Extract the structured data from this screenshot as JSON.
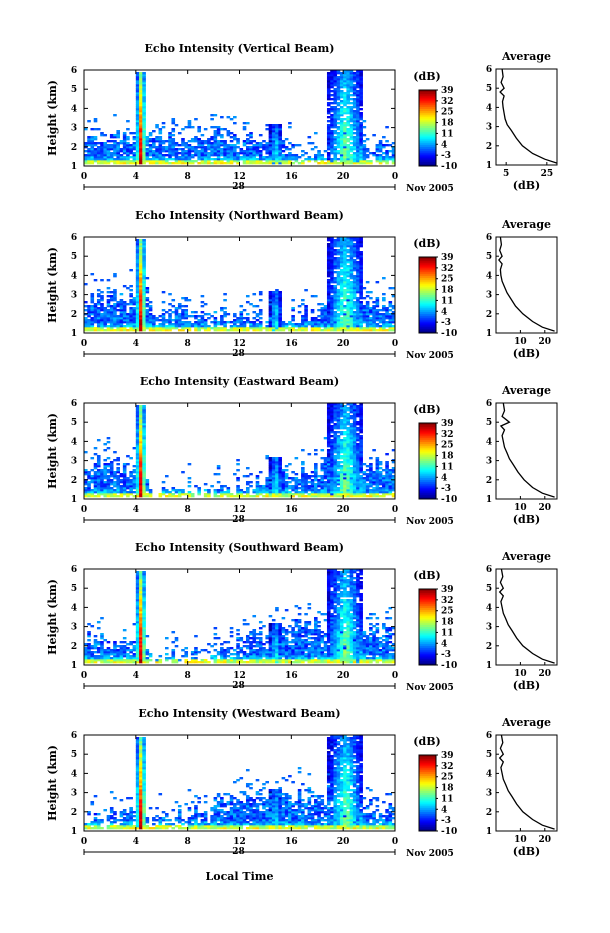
{
  "figure": {
    "colorbar_unit": "(dB)",
    "colorbar_ticks": [
      "39",
      "32",
      "25",
      "18",
      "11",
      "4",
      "-3",
      "-10"
    ],
    "date_label": "Nov 2005",
    "day_label": "28",
    "x_ticks": [
      "0",
      "4",
      "8",
      "12",
      "16",
      "20",
      "0"
    ],
    "y_ticks": [
      "1",
      "2",
      "3",
      "4",
      "5",
      "6"
    ],
    "ylabel": "Height (km)",
    "avg_title": "Average",
    "avg_xlabel": "(dB)",
    "xlabel_bottom": "Local Time"
  },
  "chart_data": [
    {
      "type": "heatmap",
      "title": "Echo Intensity (Vertical Beam)",
      "xlabel": "",
      "ylabel": "Height (km)",
      "xlim": [
        0,
        24
      ],
      "ylim": [
        1,
        6
      ],
      "zlim": [
        -10,
        39
      ],
      "avg_profile": {
        "title": "Average",
        "xlabel": "(dB)",
        "x_ticks": [
          "5",
          "25"
        ],
        "xlim": [
          0,
          30
        ],
        "height": [
          1.1,
          1.3,
          1.6,
          2.0,
          2.4,
          2.8,
          3.1,
          3.4,
          3.7,
          4.0,
          4.3,
          4.6,
          4.8,
          5.0,
          5.3,
          5.6,
          6.0
        ],
        "db": [
          30,
          24,
          18,
          13,
          10,
          7.5,
          5.5,
          4.5,
          4.0,
          3.5,
          3.2,
          4.0,
          2.0,
          4.0,
          2.5,
          3.5,
          3.0
        ]
      }
    },
    {
      "type": "heatmap",
      "title": "Echo Intensity (Northward Beam)",
      "xlabel": "",
      "ylabel": "Height (km)",
      "xlim": [
        0,
        24
      ],
      "ylim": [
        1,
        6
      ],
      "zlim": [
        -10,
        39
      ],
      "avg_profile": {
        "title": "Average",
        "xlabel": "(dB)",
        "x_ticks": [
          "10",
          "20"
        ],
        "xlim": [
          0,
          25
        ],
        "height": [
          1.1,
          1.3,
          1.6,
          2.0,
          2.4,
          2.8,
          3.1,
          3.4,
          3.7,
          4.0,
          4.3,
          4.6,
          4.8,
          5.0,
          5.3,
          5.6,
          6.0
        ],
        "db": [
          24,
          19,
          15,
          11,
          8,
          6,
          4.5,
          3.5,
          2.5,
          2.0,
          1.8,
          2.5,
          1.2,
          2.5,
          1.5,
          2.2,
          1.8
        ]
      }
    },
    {
      "type": "heatmap",
      "title": "Echo Intensity (Eastward Beam)",
      "xlabel": "",
      "ylabel": "Height (km)",
      "xlim": [
        0,
        24
      ],
      "ylim": [
        1,
        6
      ],
      "zlim": [
        -10,
        39
      ],
      "avg_profile": {
        "title": "Average",
        "xlabel": "(dB)",
        "x_ticks": [
          "10",
          "20"
        ],
        "xlim": [
          0,
          25
        ],
        "height": [
          1.1,
          1.3,
          1.6,
          2.0,
          2.4,
          2.8,
          3.1,
          3.4,
          3.7,
          4.0,
          4.3,
          4.6,
          4.8,
          5.0,
          5.3,
          5.6,
          6.0
        ],
        "db": [
          24,
          19,
          15,
          11.5,
          9,
          7,
          5.5,
          4.5,
          3.5,
          3.0,
          2.5,
          3.5,
          2.0,
          5.5,
          2.5,
          3.5,
          3.0
        ]
      }
    },
    {
      "type": "heatmap",
      "title": "Echo Intensity (Southward Beam)",
      "xlabel": "",
      "ylabel": "Height (km)",
      "xlim": [
        0,
        24
      ],
      "ylim": [
        1,
        6
      ],
      "zlim": [
        -10,
        39
      ],
      "avg_profile": {
        "title": "Average",
        "xlabel": "(dB)",
        "x_ticks": [
          "10",
          "20"
        ],
        "xlim": [
          0,
          25
        ],
        "height": [
          1.1,
          1.3,
          1.6,
          2.0,
          2.4,
          2.8,
          3.1,
          3.4,
          3.7,
          4.0,
          4.3,
          4.6,
          4.8,
          5.0,
          5.3,
          5.6,
          6.0
        ],
        "db": [
          24,
          19,
          15,
          11,
          8.5,
          6.5,
          5,
          4,
          3,
          2.5,
          2.0,
          3.0,
          1.5,
          3.0,
          1.8,
          2.8,
          2.2
        ]
      }
    },
    {
      "type": "heatmap",
      "title": "Echo Intensity (Westward Beam)",
      "xlabel": "Local Time",
      "ylabel": "Height (km)",
      "xlim": [
        0,
        24
      ],
      "ylim": [
        1,
        6
      ],
      "zlim": [
        -10,
        39
      ],
      "avg_profile": {
        "title": "Average",
        "xlabel": "(dB)",
        "x_ticks": [
          "10",
          "20"
        ],
        "xlim": [
          0,
          25
        ],
        "height": [
          1.1,
          1.3,
          1.6,
          2.0,
          2.4,
          2.8,
          3.1,
          3.4,
          3.7,
          4.0,
          4.3,
          4.6,
          4.8,
          5.0,
          5.3,
          5.6,
          6.0
        ],
        "db": [
          24,
          19,
          15,
          11,
          8.5,
          6.5,
          5,
          4,
          3,
          2.5,
          2.0,
          3.0,
          1.5,
          3.0,
          1.8,
          2.8,
          2.2
        ]
      }
    }
  ]
}
